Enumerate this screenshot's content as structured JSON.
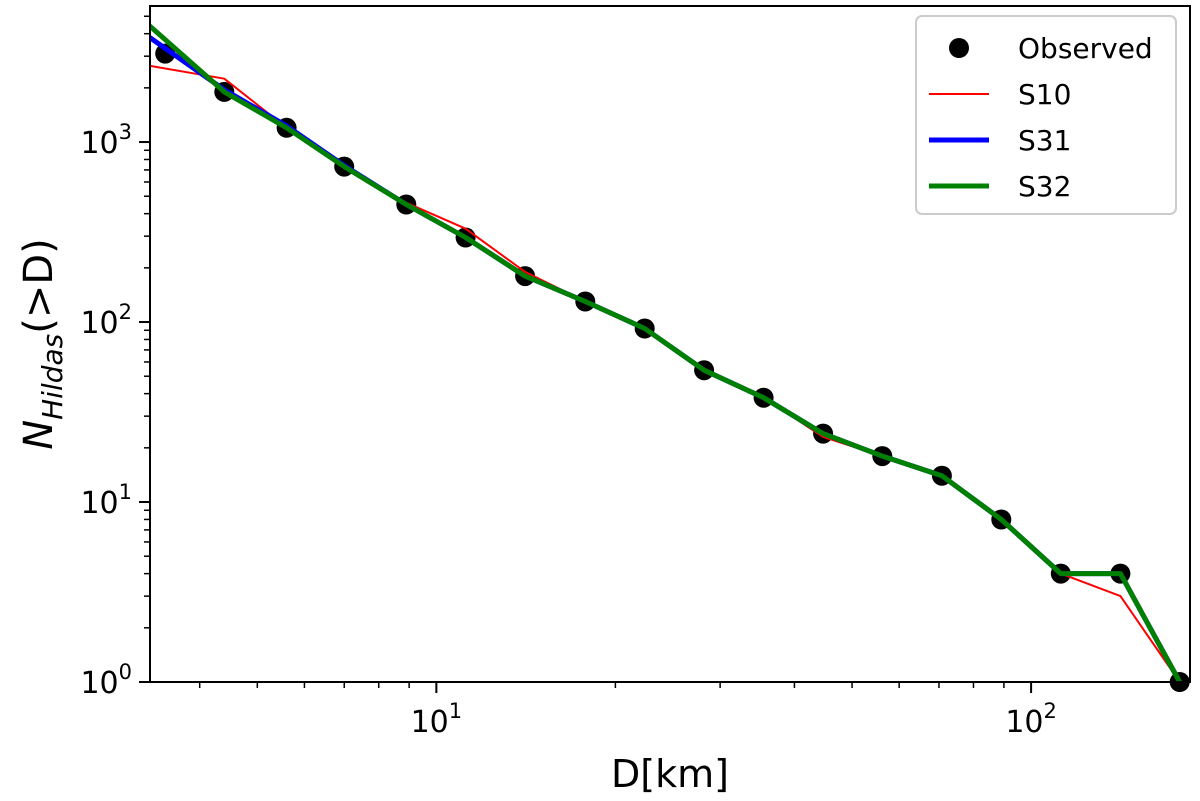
{
  "chart_data": {
    "type": "line",
    "xlabel": "D[km]",
    "ylabel": {
      "base": "N",
      "subscript": "Hildas",
      "suffix": "(>D)"
    },
    "xscale": "log",
    "yscale": "log",
    "xlim": [
      3.3,
      185
    ],
    "ylim": [
      1,
      5700
    ],
    "xticks": [
      {
        "value": 10,
        "base": "10",
        "exp": "1"
      },
      {
        "value": 100,
        "base": "10",
        "exp": "2"
      }
    ],
    "yticks": [
      {
        "value": 1,
        "base": "10",
        "exp": "0"
      },
      {
        "value": 10,
        "base": "10",
        "exp": "1"
      },
      {
        "value": 100,
        "base": "10",
        "exp": "2"
      },
      {
        "value": 1000,
        "base": "10",
        "exp": "3"
      }
    ],
    "grid": false,
    "legend_position": "top-right",
    "observed": {
      "name": "Observed",
      "color": "#000000",
      "x": [
        3.5,
        4.4,
        5.6,
        7.0,
        8.9,
        11.2,
        14.1,
        17.8,
        22.4,
        28.2,
        35.5,
        44.7,
        56.2,
        70.8,
        89.1,
        112.2,
        141.3,
        177.8
      ],
      "y": [
        3100,
        1900,
        1200,
        730,
        450,
        295,
        180,
        130,
        92,
        54,
        38,
        24,
        18,
        14,
        8,
        4,
        4,
        1
      ]
    },
    "series": [
      {
        "name": "S10",
        "color": "#ff0000",
        "width": 2,
        "x": [
          3.3,
          4.4,
          5.6,
          7.0,
          8.9,
          11.2,
          14.1,
          17.8,
          22.4,
          28.2,
          35.5,
          44.7,
          56.2,
          70.8,
          89.1,
          112.2,
          141.3,
          177.8
        ],
        "y": [
          2650,
          2250,
          1200,
          730,
          460,
          330,
          190,
          130,
          92,
          54,
          38,
          23,
          18,
          14,
          8,
          4,
          3,
          1
        ]
      },
      {
        "name": "S31",
        "color": "#0000ff",
        "width": 5,
        "x": [
          3.3,
          4.4,
          5.6,
          7.0,
          8.9,
          11.2,
          14.1,
          17.8,
          22.4,
          28.2,
          35.5,
          44.7,
          56.2,
          70.8,
          89.1,
          112.2,
          141.3,
          177.8
        ],
        "y": [
          3800,
          1950,
          1230,
          740,
          450,
          295,
          180,
          130,
          92,
          54,
          38,
          24,
          18,
          14,
          8,
          4,
          4,
          1
        ]
      },
      {
        "name": "S32",
        "color": "#008000",
        "width": 5,
        "x": [
          3.3,
          4.4,
          5.6,
          7.0,
          8.9,
          11.2,
          14.1,
          17.8,
          22.4,
          28.2,
          35.5,
          44.7,
          56.2,
          70.8,
          89.1,
          112.2,
          141.3,
          177.8
        ],
        "y": [
          4400,
          1900,
          1200,
          730,
          450,
          295,
          180,
          130,
          92,
          54,
          38,
          24,
          18,
          14,
          8,
          4,
          4,
          1
        ]
      }
    ]
  }
}
